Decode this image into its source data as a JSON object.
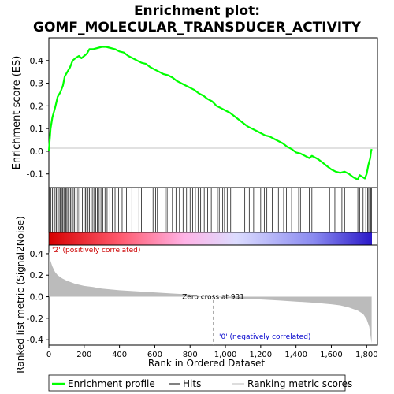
{
  "chart_data": {
    "type": "line",
    "title_line1": "Enrichment plot:",
    "title_line2": "GOMF_MOLECULAR_TRANSDUCER_ACTIVITY",
    "xlabel": "Rank in Ordered Dataset",
    "ylabel_top": "Enrichment score (ES)",
    "ylabel_bottom": "Ranked list metric (Signal2Noise)",
    "xlim": [
      0,
      1830
    ],
    "es_ylim": [
      -0.16,
      0.5
    ],
    "metric_ylim": [
      -0.45,
      0.48
    ],
    "x_ticks": [
      0,
      200,
      400,
      600,
      800,
      1000,
      1200,
      1400,
      1600,
      1800
    ],
    "x_tick_labels": [
      "0",
      "200",
      "400",
      "600",
      "800",
      "1,000",
      "1,200",
      "1,400",
      "1,600",
      "1,800"
    ],
    "es_ticks": [
      -0.1,
      0.0,
      0.1,
      0.2,
      0.3,
      0.4
    ],
    "es_tick_labels": [
      "-0.1",
      "0.0",
      "0.1",
      "0.2",
      "0.3",
      "0.4"
    ],
    "metric_ticks": [
      -0.4,
      -0.2,
      0.0,
      0.2,
      0.4
    ],
    "metric_tick_labels": [
      "-0.4",
      "-0.2",
      "0.0",
      "0.2",
      "0.4"
    ],
    "enrichment_profile": [
      [
        0,
        0.0
      ],
      [
        10,
        0.1
      ],
      [
        20,
        0.15
      ],
      [
        35,
        0.19
      ],
      [
        50,
        0.24
      ],
      [
        65,
        0.26
      ],
      [
        80,
        0.29
      ],
      [
        90,
        0.33
      ],
      [
        105,
        0.35
      ],
      [
        120,
        0.37
      ],
      [
        135,
        0.4
      ],
      [
        150,
        0.41
      ],
      [
        170,
        0.42
      ],
      [
        185,
        0.41
      ],
      [
        200,
        0.42
      ],
      [
        215,
        0.43
      ],
      [
        230,
        0.45
      ],
      [
        250,
        0.45
      ],
      [
        275,
        0.455
      ],
      [
        300,
        0.46
      ],
      [
        325,
        0.46
      ],
      [
        350,
        0.455
      ],
      [
        375,
        0.45
      ],
      [
        400,
        0.44
      ],
      [
        425,
        0.435
      ],
      [
        450,
        0.42
      ],
      [
        475,
        0.41
      ],
      [
        500,
        0.4
      ],
      [
        525,
        0.39
      ],
      [
        550,
        0.385
      ],
      [
        575,
        0.37
      ],
      [
        600,
        0.36
      ],
      [
        625,
        0.35
      ],
      [
        650,
        0.34
      ],
      [
        675,
        0.335
      ],
      [
        700,
        0.325
      ],
      [
        725,
        0.31
      ],
      [
        750,
        0.3
      ],
      [
        775,
        0.29
      ],
      [
        800,
        0.28
      ],
      [
        825,
        0.27
      ],
      [
        850,
        0.255
      ],
      [
        875,
        0.245
      ],
      [
        900,
        0.23
      ],
      [
        925,
        0.22
      ],
      [
        950,
        0.2
      ],
      [
        975,
        0.19
      ],
      [
        1000,
        0.18
      ],
      [
        1025,
        0.17
      ],
      [
        1050,
        0.155
      ],
      [
        1075,
        0.14
      ],
      [
        1100,
        0.125
      ],
      [
        1125,
        0.11
      ],
      [
        1150,
        0.1
      ],
      [
        1175,
        0.09
      ],
      [
        1200,
        0.08
      ],
      [
        1225,
        0.07
      ],
      [
        1250,
        0.065
      ],
      [
        1275,
        0.055
      ],
      [
        1300,
        0.045
      ],
      [
        1325,
        0.035
      ],
      [
        1350,
        0.02
      ],
      [
        1375,
        0.01
      ],
      [
        1400,
        -0.005
      ],
      [
        1425,
        -0.01
      ],
      [
        1450,
        -0.02
      ],
      [
        1475,
        -0.03
      ],
      [
        1490,
        -0.02
      ],
      [
        1525,
        -0.035
      ],
      [
        1550,
        -0.05
      ],
      [
        1575,
        -0.065
      ],
      [
        1600,
        -0.08
      ],
      [
        1625,
        -0.09
      ],
      [
        1650,
        -0.095
      ],
      [
        1675,
        -0.09
      ],
      [
        1700,
        -0.1
      ],
      [
        1725,
        -0.115
      ],
      [
        1750,
        -0.125
      ],
      [
        1760,
        -0.105
      ],
      [
        1790,
        -0.12
      ],
      [
        1800,
        -0.1
      ],
      [
        1810,
        -0.06
      ],
      [
        1820,
        -0.03
      ],
      [
        1825,
        0.0
      ],
      [
        1828,
        0.01
      ]
    ],
    "hits": [
      5,
      12,
      20,
      28,
      35,
      42,
      50,
      58,
      65,
      72,
      78,
      85,
      90,
      96,
      102,
      108,
      115,
      122,
      130,
      138,
      146,
      155,
      165,
      175,
      190,
      200,
      208,
      215,
      222,
      230,
      238,
      246,
      255,
      265,
      275,
      285,
      295,
      305,
      318,
      330,
      345,
      360,
      375,
      395,
      415,
      440,
      470,
      510,
      525,
      555,
      590,
      605,
      615,
      640,
      660,
      670,
      680,
      700,
      720,
      740,
      760,
      780,
      800,
      815,
      830,
      845,
      860,
      880,
      900,
      920,
      935,
      955,
      965,
      975,
      985,
      995,
      1010,
      1020,
      1030,
      1110,
      1135,
      1160,
      1200,
      1220,
      1235,
      1265,
      1300,
      1330,
      1345,
      1375,
      1395,
      1415,
      1425,
      1440,
      1475,
      1490,
      1590,
      1620,
      1660,
      1675,
      1750,
      1760,
      1780,
      1795,
      1805,
      1812,
      1818,
      1823,
      1827
    ],
    "metric_curve": [
      [
        0,
        0.42
      ],
      [
        10,
        0.33
      ],
      [
        20,
        0.28
      ],
      [
        35,
        0.23
      ],
      [
        50,
        0.2
      ],
      [
        75,
        0.17
      ],
      [
        100,
        0.15
      ],
      [
        150,
        0.12
      ],
      [
        200,
        0.1
      ],
      [
        250,
        0.09
      ],
      [
        300,
        0.075
      ],
      [
        400,
        0.06
      ],
      [
        500,
        0.05
      ],
      [
        600,
        0.04
      ],
      [
        700,
        0.03
      ],
      [
        800,
        0.02
      ],
      [
        931,
        0.0
      ],
      [
        1000,
        -0.01
      ],
      [
        1100,
        -0.02
      ],
      [
        1200,
        -0.025
      ],
      [
        1300,
        -0.035
      ],
      [
        1400,
        -0.045
      ],
      [
        1500,
        -0.055
      ],
      [
        1600,
        -0.07
      ],
      [
        1650,
        -0.08
      ],
      [
        1700,
        -0.1
      ],
      [
        1750,
        -0.13
      ],
      [
        1780,
        -0.16
      ],
      [
        1800,
        -0.21
      ],
      [
        1815,
        -0.28
      ],
      [
        1825,
        -0.4
      ],
      [
        1828,
        -0.43
      ]
    ],
    "zero_cross_rank": 931,
    "zero_cross_label": "Zero cross at 931",
    "positive_label": "'2' (positively correlated)",
    "negative_label": "'0' (negatively correlated)",
    "legend": [
      {
        "name": "Enrichment profile",
        "color": "#00ff00"
      },
      {
        "name": "Hits",
        "color": "#000000"
      },
      {
        "name": "Ranking metric scores",
        "color": "#bbbbbb"
      }
    ],
    "colors": {
      "profile": "#00ff00",
      "metric_fill": "#bbbbbb",
      "positive_label": "#cc0000",
      "negative_label": "#0000cc",
      "gradient": [
        "#d60000",
        "#ff5a6e",
        "#ffb3e6",
        "#dcdcff",
        "#8a8af0",
        "#2a18c8"
      ]
    }
  }
}
